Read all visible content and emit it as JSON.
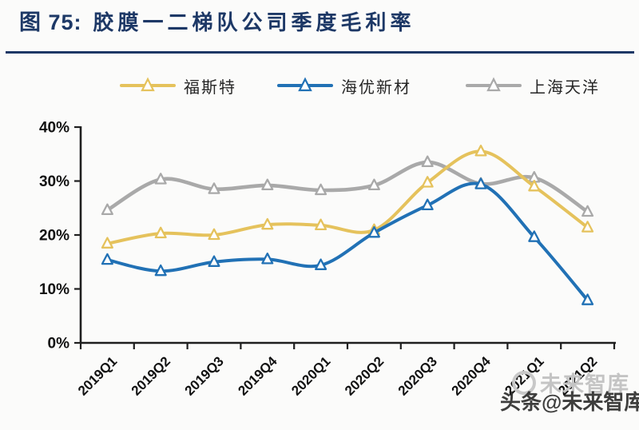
{
  "header": {
    "figure_label": "图 75:",
    "title": "胶膜一二梯队公司季度毛利率",
    "accent_color": "#1d3866"
  },
  "chart_data": {
    "type": "line",
    "title": "胶膜一二梯队公司季度毛利率",
    "categories": [
      "2019Q1",
      "2019Q2",
      "2019Q3",
      "2019Q4",
      "2020Q1",
      "2020Q2",
      "2020Q3",
      "2020Q4",
      "2021Q1",
      "2021Q2"
    ],
    "series": [
      {
        "name": "福斯特",
        "color": "#e5c25c",
        "values": [
          18.4,
          20.3,
          20.0,
          21.9,
          21.8,
          20.9,
          29.7,
          35.5,
          29.0,
          21.4
        ]
      },
      {
        "name": "海优新材",
        "color": "#2171b5",
        "values": [
          15.4,
          13.3,
          15.0,
          15.5,
          14.4,
          20.4,
          25.5,
          29.4,
          19.6,
          7.9
        ]
      },
      {
        "name": "上海天洋",
        "color": "#a9a9a9",
        "values": [
          24.6,
          30.3,
          28.5,
          29.2,
          28.3,
          29.2,
          33.5,
          29.5,
          30.6,
          24.3
        ]
      }
    ],
    "ylim": [
      0,
      40
    ],
    "ytick_step": 10,
    "ytick_labels": [
      "0%",
      "10%",
      "20%",
      "30%",
      "40%"
    ],
    "xlabel": "",
    "ylabel": "",
    "grid": false,
    "legend_position": "top",
    "marker": "triangle-open",
    "line_smooth": true,
    "axis_color": "#1f1f1f"
  },
  "watermark": {
    "dark_text": "头条@未来智库",
    "ghost_text": "未来智库"
  }
}
